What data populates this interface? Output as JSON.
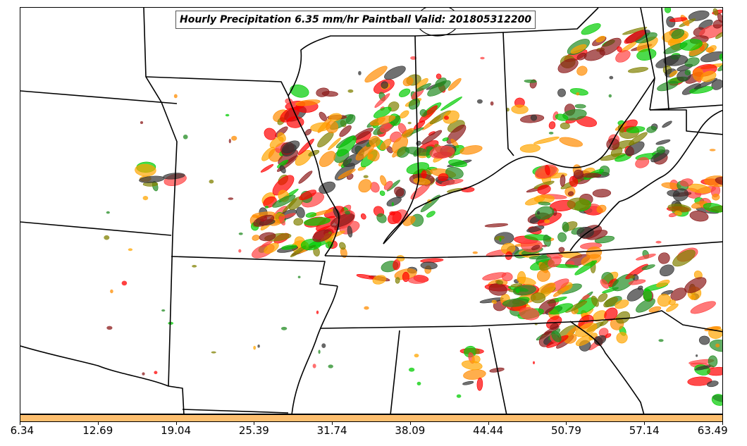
{
  "title": "Hourly Precipitation 6.35 mm/hr Paintball Valid: 201805312200",
  "colorbar": {
    "color": "#fdbf6f",
    "tick_labels": [
      "6.34",
      "12.69",
      "19.04",
      "25.39",
      "31.74",
      "38.09",
      "44.44",
      "50.79",
      "57.14",
      "63.49"
    ]
  },
  "colors": {
    "member_palette": [
      "#ff0000",
      "#ff8c00",
      "#00cc00",
      "#228b22",
      "#8b1a1a",
      "#808000",
      "#333333",
      "#ff4040",
      "#ffa500"
    ],
    "state_borders": "#000000",
    "background": "#ffffff"
  }
}
